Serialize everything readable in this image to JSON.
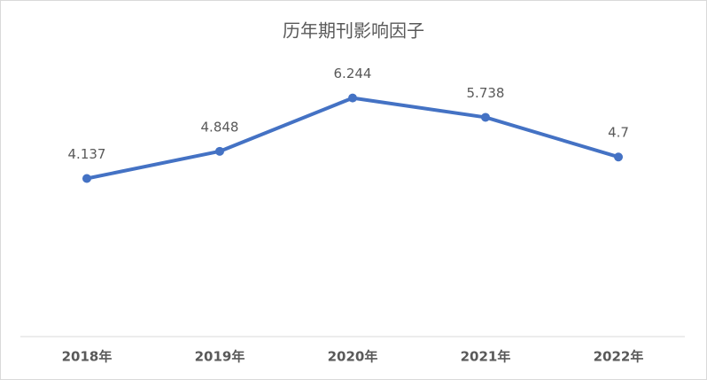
{
  "chart_data": {
    "type": "line",
    "title": "历年期刊影响因子",
    "categories": [
      "2018年",
      "2019年",
      "2020年",
      "2021年",
      "2022年"
    ],
    "series": [
      {
        "name": "影响因子",
        "color": "#4472c4",
        "values": [
          4.137,
          4.848,
          6.244,
          5.738,
          4.7
        ]
      }
    ],
    "ylim": [
      0,
      7
    ]
  }
}
